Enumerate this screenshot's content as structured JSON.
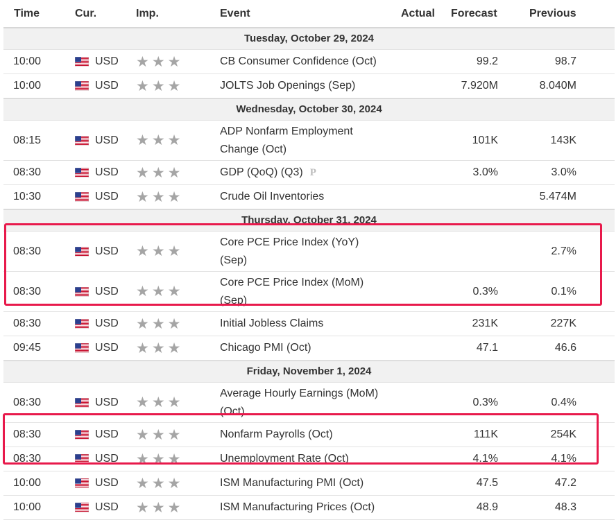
{
  "columns": {
    "time": "Time",
    "currency": "Cur.",
    "importance": "Imp.",
    "event": "Event",
    "actual": "Actual",
    "forecast": "Forecast",
    "previous": "Previous"
  },
  "days": [
    {
      "date": "Tuesday, October 29, 2024",
      "events": [
        {
          "time": "10:00",
          "currency": "USD",
          "event": "CB Consumer Confidence (Oct)",
          "actual": "",
          "forecast": "99.2",
          "previous": "98.7"
        },
        {
          "time": "10:00",
          "currency": "USD",
          "event": "JOLTS Job Openings (Sep)",
          "actual": "",
          "forecast": "7.920M",
          "previous": "8.040M"
        }
      ]
    },
    {
      "date": "Wednesday, October 30, 2024",
      "events": [
        {
          "time": "08:15",
          "currency": "USD",
          "event_line1": "ADP Nonfarm Employment",
          "event_line2": "Change (Oct)",
          "actual": "",
          "forecast": "101K",
          "previous": "143K"
        },
        {
          "time": "08:30",
          "currency": "USD",
          "event": "GDP (QoQ) (Q3)",
          "badge": "P",
          "actual": "",
          "forecast": "3.0%",
          "previous": "3.0%"
        },
        {
          "time": "10:30",
          "currency": "USD",
          "event": "Crude Oil Inventories",
          "actual": "",
          "forecast": "",
          "previous": "5.474M"
        }
      ]
    },
    {
      "date": "Thursday, October 31, 2024",
      "events": [
        {
          "time": "08:30",
          "currency": "USD",
          "event_line1": "Core PCE Price Index (YoY)",
          "event_line2": "(Sep)",
          "actual": "",
          "forecast": "",
          "previous": "2.7%"
        },
        {
          "time": "08:30",
          "currency": "USD",
          "event_line1": "Core PCE Price Index (MoM)",
          "event_line2": "(Sep)",
          "actual": "",
          "forecast": "0.3%",
          "previous": "0.1%"
        },
        {
          "time": "08:30",
          "currency": "USD",
          "event": "Initial Jobless Claims",
          "actual": "",
          "forecast": "231K",
          "previous": "227K"
        },
        {
          "time": "09:45",
          "currency": "USD",
          "event": "Chicago PMI (Oct)",
          "actual": "",
          "forecast": "47.1",
          "previous": "46.6"
        }
      ]
    },
    {
      "date": "Friday, November 1, 2024",
      "events": [
        {
          "time": "08:30",
          "currency": "USD",
          "event_line1": "Average Hourly Earnings (MoM)",
          "event_line2": "(Oct)",
          "actual": "",
          "forecast": "0.3%",
          "previous": "0.4%"
        },
        {
          "time": "08:30",
          "currency": "USD",
          "event": "Nonfarm Payrolls (Oct)",
          "actual": "",
          "forecast": "111K",
          "previous": "254K"
        },
        {
          "time": "08:30",
          "currency": "USD",
          "event": "Unemployment Rate (Oct)",
          "actual": "",
          "forecast": "4.1%",
          "previous": "4.1%"
        },
        {
          "time": "10:00",
          "currency": "USD",
          "event": "ISM Manufacturing PMI (Oct)",
          "actual": "",
          "forecast": "47.5",
          "previous": "47.2"
        },
        {
          "time": "10:00",
          "currency": "USD",
          "event": "ISM Manufacturing Prices (Oct)",
          "actual": "",
          "forecast": "48.9",
          "previous": "48.3"
        }
      ]
    }
  ],
  "icons": {
    "flag": "us-flag-icon",
    "importance": "star-icon"
  },
  "importance_stars": 3,
  "colors": {
    "highlight": "#e8194b",
    "star": "#a5a5a5",
    "day_header_bg": "#f1f1f1"
  }
}
